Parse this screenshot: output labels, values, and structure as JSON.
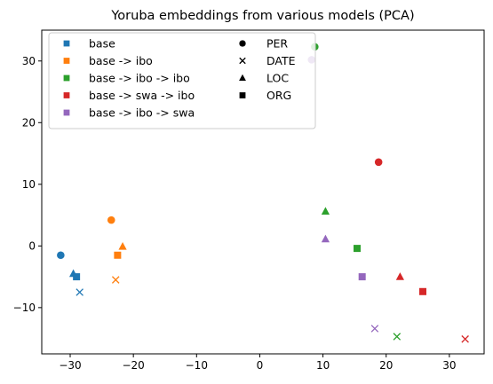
{
  "chart_data": {
    "type": "scatter",
    "title": "Yoruba embeddings from various models (PCA)",
    "xlabel": "",
    "ylabel": "",
    "xlim": [
      -34.5,
      35.5
    ],
    "ylim": [
      -17.5,
      35
    ],
    "xticks": [
      -30,
      -20,
      -10,
      0,
      10,
      20,
      30
    ],
    "yticks": [
      -10,
      0,
      10,
      20,
      30
    ],
    "grid": false,
    "legend_position": "top-left",
    "series": [
      {
        "name": "base",
        "color": "#1f77b4",
        "points": [
          {
            "x": -31.5,
            "y": -1.5,
            "marker": "circle"
          },
          {
            "x": -28.5,
            "y": -7.5,
            "marker": "x"
          },
          {
            "x": -29.5,
            "y": -4.5,
            "marker": "triangle"
          },
          {
            "x": -29.0,
            "y": -5.0,
            "marker": "square"
          }
        ]
      },
      {
        "name": "base -> ibo",
        "color": "#ff7f0e",
        "points": [
          {
            "x": -23.5,
            "y": 4.2,
            "marker": "circle"
          },
          {
            "x": -22.8,
            "y": -5.5,
            "marker": "x"
          },
          {
            "x": -21.7,
            "y": -0.1,
            "marker": "triangle"
          },
          {
            "x": -22.5,
            "y": -1.5,
            "marker": "square"
          }
        ]
      },
      {
        "name": "base -> ibo -> ibo",
        "color": "#2ca02c",
        "points": [
          {
            "x": 8.7,
            "y": 32.3,
            "marker": "circle"
          },
          {
            "x": 21.7,
            "y": -14.7,
            "marker": "x"
          },
          {
            "x": 10.4,
            "y": 5.6,
            "marker": "triangle"
          },
          {
            "x": 15.4,
            "y": -0.4,
            "marker": "square"
          }
        ]
      },
      {
        "name": "base -> swa -> ibo",
        "color": "#d62728",
        "points": [
          {
            "x": 18.8,
            "y": 13.6,
            "marker": "circle"
          },
          {
            "x": 32.5,
            "y": -15.1,
            "marker": "x"
          },
          {
            "x": 22.2,
            "y": -5.0,
            "marker": "triangle"
          },
          {
            "x": 25.8,
            "y": -7.4,
            "marker": "square"
          }
        ]
      },
      {
        "name": "base -> ibo -> swa",
        "color": "#9467bd",
        "points": [
          {
            "x": 8.2,
            "y": 30.2,
            "marker": "circle"
          },
          {
            "x": 18.2,
            "y": -13.4,
            "marker": "x"
          },
          {
            "x": 10.4,
            "y": 1.1,
            "marker": "triangle"
          },
          {
            "x": 16.2,
            "y": -5.0,
            "marker": "square"
          }
        ]
      }
    ],
    "marker_legend": [
      {
        "label": "PER",
        "marker": "circle"
      },
      {
        "label": "DATE",
        "marker": "x"
      },
      {
        "label": "LOC",
        "marker": "triangle"
      },
      {
        "label": "ORG",
        "marker": "square"
      }
    ]
  }
}
